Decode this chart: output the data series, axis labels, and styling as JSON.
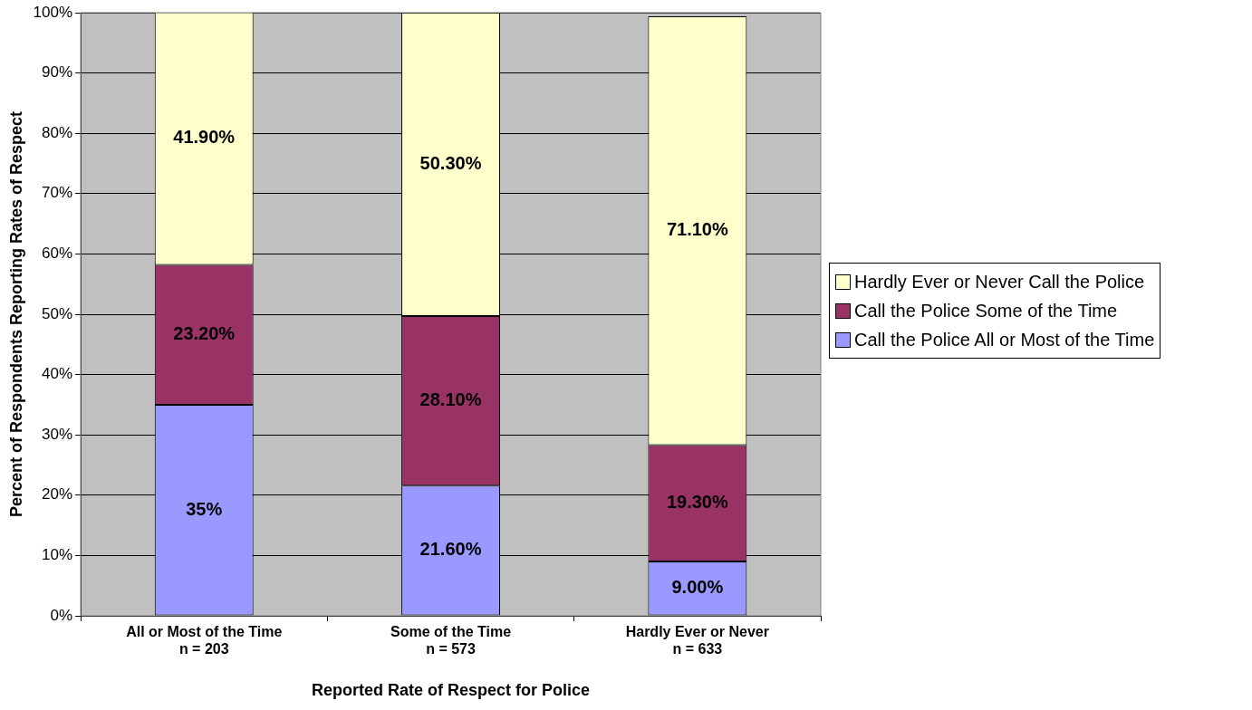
{
  "chart_data": {
    "type": "bar",
    "stacked": true,
    "xlabel": "Reported Rate of Respect for Police",
    "ylabel": "Percent of Respondents Reporting Rates of Respect",
    "categories": [
      "All or Most of the Time\nn = 203",
      "Some of the Time\nn = 573",
      "Hardly Ever or Never\nn = 633"
    ],
    "series": [
      {
        "name": "Call the Police All or Most of the Time",
        "color": "#9999ff",
        "values": [
          35,
          21.6,
          9.0
        ],
        "value_labels": [
          "35%",
          "21.60%",
          "9.00%"
        ]
      },
      {
        "name": "Call the Police Some of the Time",
        "color": "#993366",
        "values": [
          23.2,
          28.1,
          19.3
        ],
        "value_labels": [
          "23.20%",
          "28.10%",
          "19.30%"
        ]
      },
      {
        "name": "Hardly Ever or Never Call the Police",
        "color": "#ffffcc",
        "values": [
          41.9,
          50.3,
          71.1
        ],
        "value_labels": [
          "41.90%",
          "50.30%",
          "71.10%"
        ]
      }
    ],
    "ylim": [
      0,
      100
    ],
    "yticks": [
      {
        "value": 0,
        "label": "0%"
      },
      {
        "value": 10,
        "label": "10%"
      },
      {
        "value": 20,
        "label": "20%"
      },
      {
        "value": 30,
        "label": "30%"
      },
      {
        "value": 40,
        "label": "40%"
      },
      {
        "value": 50,
        "label": "50%"
      },
      {
        "value": 60,
        "label": "60%"
      },
      {
        "value": 70,
        "label": "70%"
      },
      {
        "value": 80,
        "label": "80%"
      },
      {
        "value": 90,
        "label": "90%"
      },
      {
        "value": 100,
        "label": "100%"
      }
    ],
    "grid": "y",
    "legend": "right"
  }
}
